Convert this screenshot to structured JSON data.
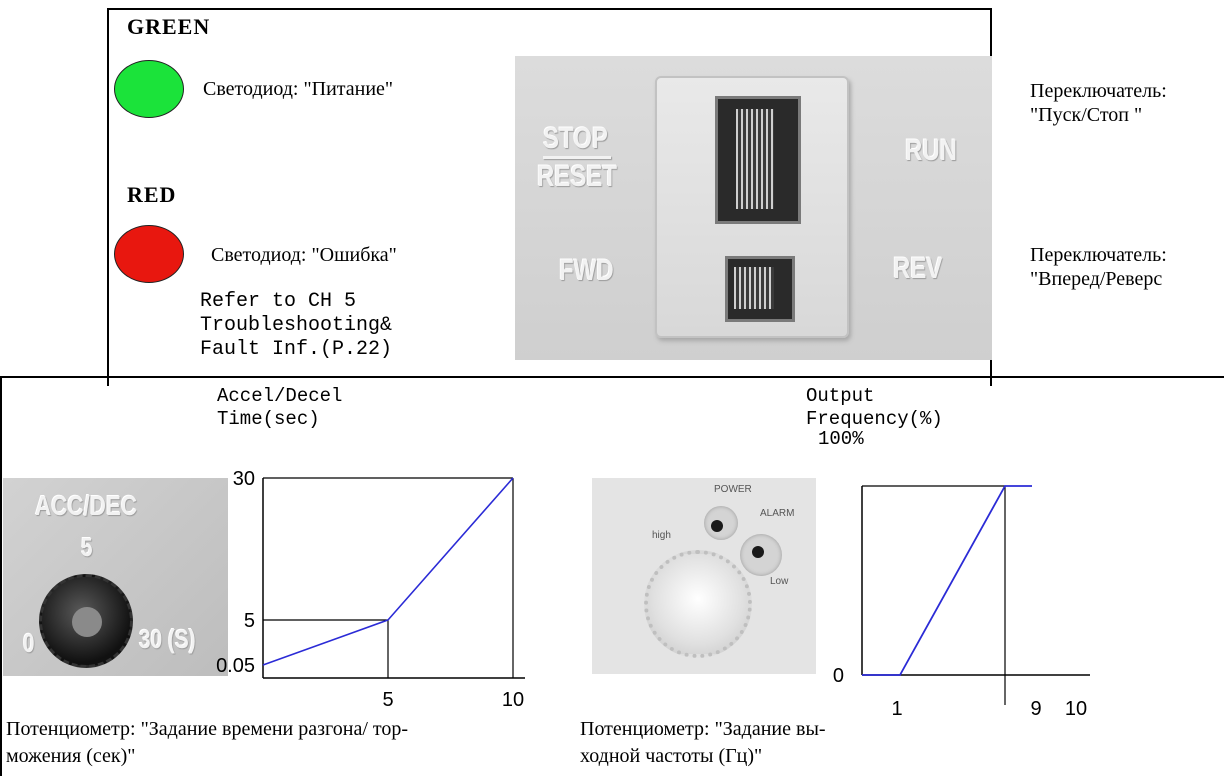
{
  "top": {
    "green_label": "GREEN",
    "green_desc": "Светодиод: \"Питание\"",
    "red_label": "RED",
    "red_desc": "Светодиод: \"Ошибка\"",
    "note": "Refer to CH 5\nTroubleshooting&\nFault Inf.(P.22)",
    "switch_labels": {
      "stop": "STOP",
      "reset": "RESET",
      "run": "RUN",
      "fwd": "FWD",
      "rev": "REV"
    },
    "switch1_desc_line1": "Переключатель:",
    "switch1_desc_line2": "\"Пуск/Стоп \"",
    "switch2_desc_line1": "Переключатель:",
    "switch2_desc_line2": "\"Вперед/Реверс"
  },
  "accdec": {
    "dial_title": "ACC/DEC",
    "dial_mark_top": "5",
    "dial_mark_left": "0",
    "dial_mark_right": "30 (S)",
    "caption_line1": "Потенциометр: \"Задание времени разгона/ тор-",
    "caption_line2": "можения (сек)\""
  },
  "freq": {
    "dial_power": "POWER",
    "dial_alarm": "ALARM",
    "dial_high": "high",
    "dial_low": "Low",
    "caption_line1": "Потенциометр: \"Задание вы-",
    "caption_line2": "ходной частоты (Гц)\""
  },
  "chart_data": [
    {
      "type": "line",
      "ylabel_line1": "Accel/Decel",
      "ylabel_line2": "Time(sec)",
      "x_ticks": [
        "5",
        "10"
      ],
      "y_ticks": [
        "30",
        "5",
        "0.05"
      ],
      "x": [
        0,
        5,
        10
      ],
      "y": [
        0.05,
        5,
        30
      ],
      "xlim": [
        0,
        10
      ],
      "series_color": "#2b2bd6"
    },
    {
      "type": "line",
      "ylabel_line1": "Output",
      "ylabel_line2": "Frequency(%)",
      "top_value": "100%",
      "x_ticks": [
        "1",
        "9",
        "10"
      ],
      "y_ticks": [
        "0"
      ],
      "x": [
        0,
        1,
        9,
        10
      ],
      "y": [
        0,
        0,
        100,
        100
      ],
      "xlim": [
        0,
        10
      ],
      "ylim": [
        0,
        100
      ],
      "series_color": "#2b2bd6"
    }
  ]
}
